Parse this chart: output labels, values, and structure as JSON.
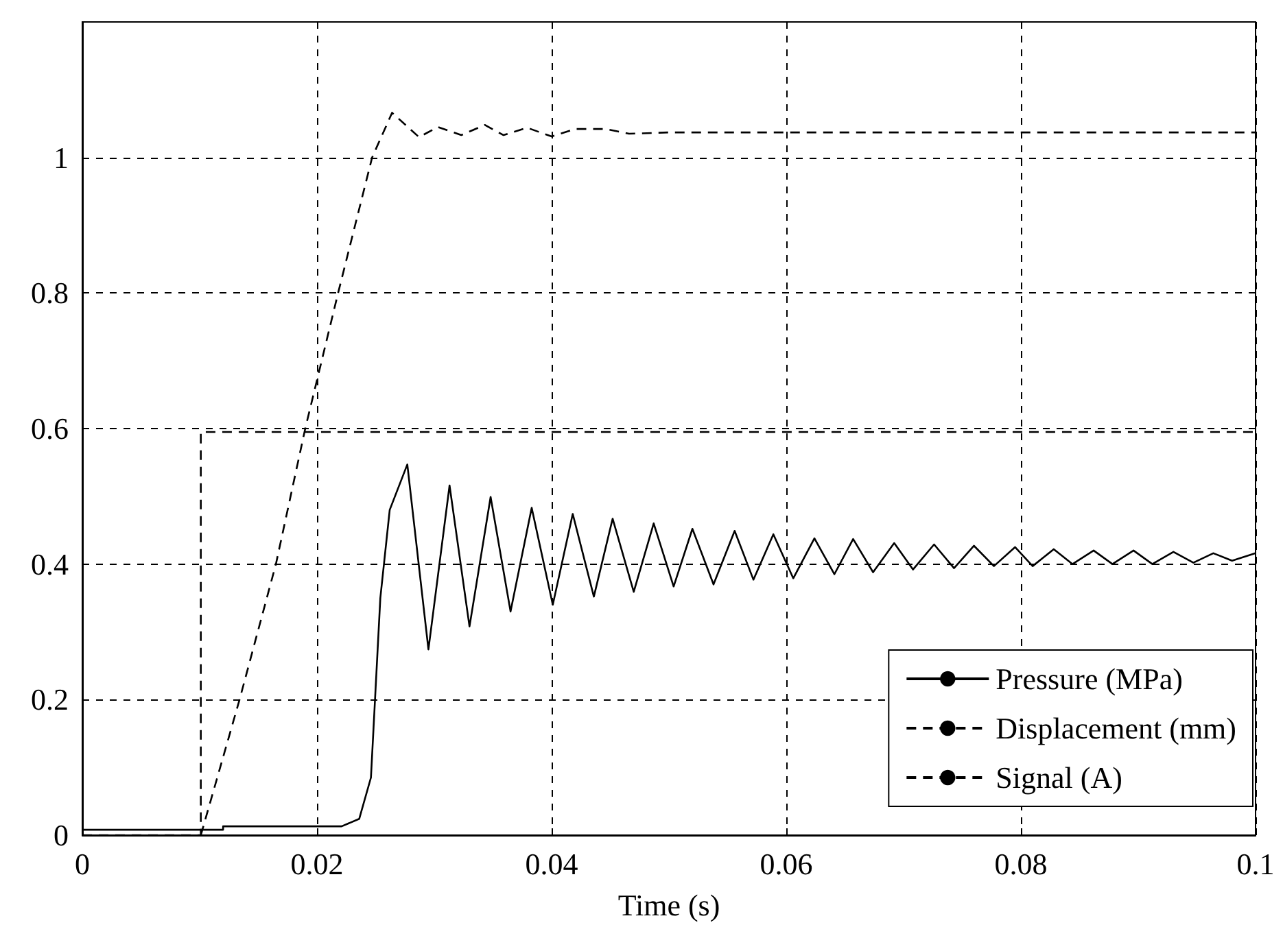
{
  "chart_data": {
    "type": "line",
    "xlabel": "Time (s)",
    "xlim": [
      0,
      0.1
    ],
    "xticks": [
      0,
      0.02,
      0.04,
      0.06,
      0.08,
      0.1
    ],
    "ylim": [
      0,
      1.2
    ],
    "yticks": [
      0,
      0.2,
      0.4,
      0.6,
      0.8,
      1
    ],
    "grid": true,
    "legend": "bottom right",
    "marker": "none",
    "series": [
      {
        "name": "Pressure (MPa)",
        "color": "#000000",
        "line_style": "solid",
        "x": [
          0,
          0.012,
          0.012,
          0.0221,
          0.0236,
          0.0246,
          0.0254,
          0.0262,
          0.0277,
          0.0295,
          0.0313,
          0.033,
          0.0348,
          0.0365,
          0.0383,
          0.0401,
          0.0418,
          0.0436,
          0.0452,
          0.047,
          0.0487,
          0.0504,
          0.052,
          0.0538,
          0.0556,
          0.0572,
          0.0589,
          0.0606,
          0.0624,
          0.0641,
          0.0657,
          0.0674,
          0.0692,
          0.0708,
          0.0726,
          0.0743,
          0.076,
          0.0777,
          0.0795,
          0.081,
          0.0828,
          0.0844,
          0.0862,
          0.0878,
          0.0896,
          0.0912,
          0.093,
          0.0947,
          0.0964,
          0.098,
          0.1
        ],
        "values": [
          0.008,
          0.008,
          0.013,
          0.013,
          0.024,
          0.085,
          0.35,
          0.48,
          0.547,
          0.274,
          0.516,
          0.308,
          0.499,
          0.33,
          0.483,
          0.34,
          0.474,
          0.352,
          0.467,
          0.359,
          0.46,
          0.367,
          0.452,
          0.37,
          0.449,
          0.377,
          0.444,
          0.379,
          0.438,
          0.385,
          0.437,
          0.388,
          0.431,
          0.392,
          0.429,
          0.394,
          0.427,
          0.397,
          0.425,
          0.397,
          0.422,
          0.4,
          0.42,
          0.4,
          0.42,
          0.4,
          0.418,
          0.402,
          0.416,
          0.405,
          0.416
        ]
      },
      {
        "name": "Displacement (mm)",
        "color": "#000000",
        "line_style": "dashed",
        "x": [
          0.0101,
          0.0134,
          0.0165,
          0.019,
          0.0218,
          0.0247,
          0.0264,
          0.0287,
          0.0303,
          0.0323,
          0.0343,
          0.0359,
          0.0379,
          0.04,
          0.042,
          0.0446,
          0.0466,
          0.05,
          0.1
        ],
        "values": [
          0,
          0.2,
          0.4,
          0.6,
          0.8,
          1.0,
          1.066,
          1.03,
          1.045,
          1.033,
          1.048,
          1.033,
          1.044,
          1.031,
          1.042,
          1.042,
          1.035,
          1.037,
          1.037
        ]
      },
      {
        "name": "Signal (A)",
        "color": "#000000",
        "line_style": "dashed",
        "x": [
          0,
          0.0101,
          0.0101,
          0.1
        ],
        "values": [
          0,
          0,
          0.595,
          0.595
        ]
      }
    ]
  }
}
